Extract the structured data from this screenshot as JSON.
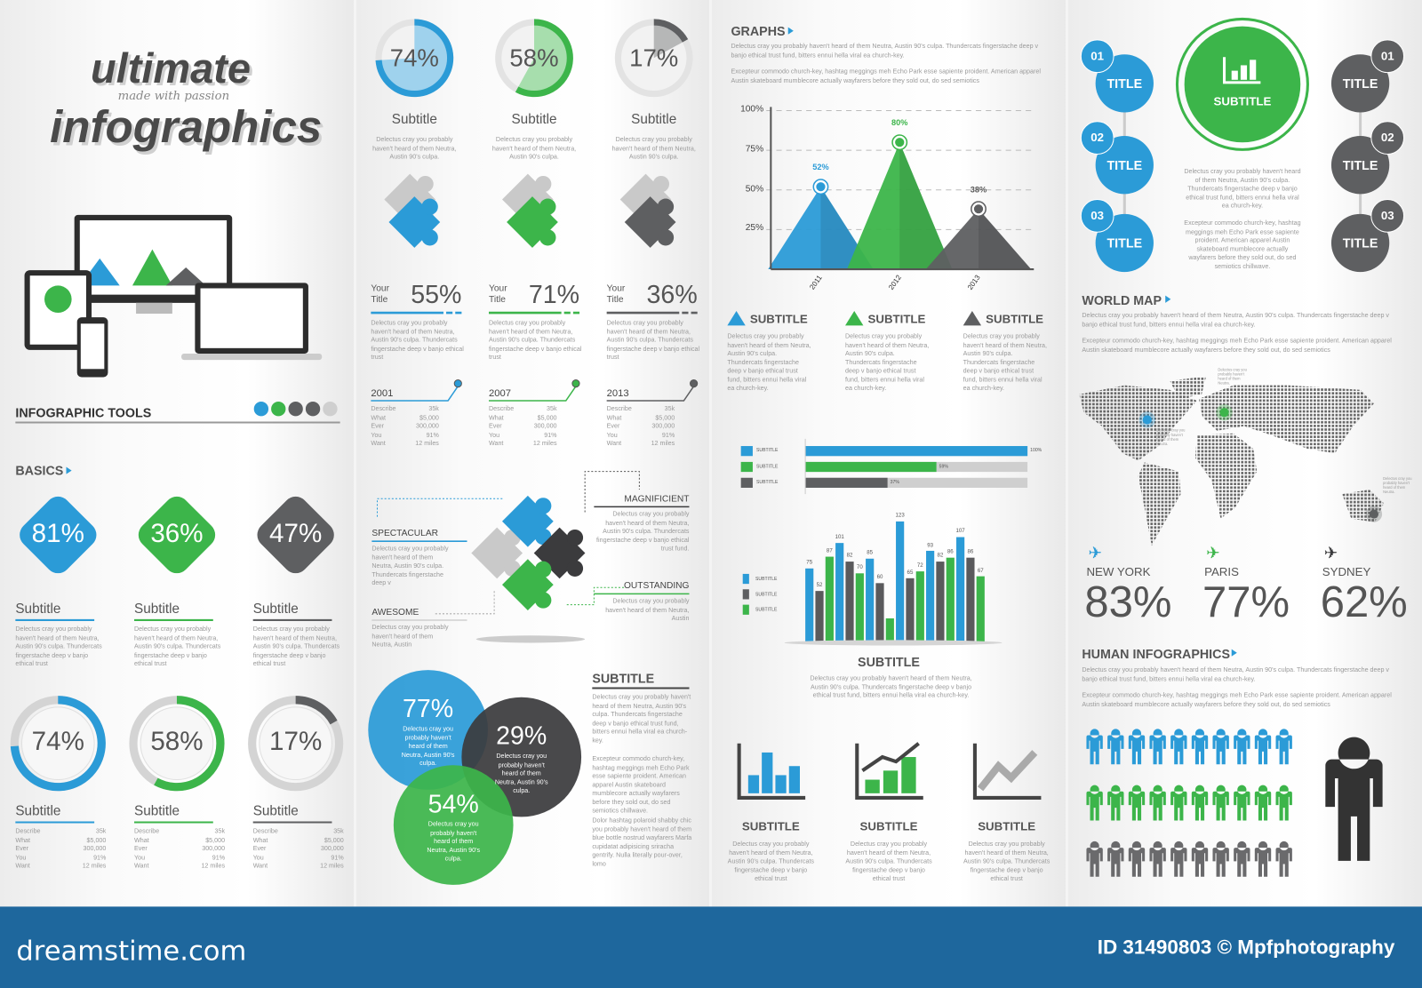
{
  "colors": {
    "blue": "#2b9bd7",
    "green": "#3cb54a",
    "gray": "#5e5f61",
    "dark": "#3b3b3d",
    "light": "#cfcfcf"
  },
  "panel1": {
    "logo": {
      "line1": "ultimate",
      "tagline": "made with passion",
      "line2": "infographics"
    },
    "tools_title": "INFOGRAPHIC TOOLS",
    "tools_dots": [
      "blue",
      "green",
      "gray",
      "gray",
      "light"
    ],
    "basics_title": "BASICS",
    "diamonds": [
      {
        "value": "81%",
        "color": "blue",
        "subtitle": "Subtitle",
        "text": "Delectus cray you probably haven't heard of them Neutra, Austin 90's culpa. Thundercats fingerstache deep v banjo ethical trust"
      },
      {
        "value": "36%",
        "color": "green",
        "subtitle": "Subtitle",
        "text": "Delectus cray you probably haven't heard of them Neutra, Austin 90's culpa. Thundercats fingerstache deep v banjo ethical trust"
      },
      {
        "value": "47%",
        "color": "gray",
        "subtitle": "Subtitle",
        "text": "Delectus cray you probably haven't heard of them Neutra, Austin 90's culpa. Thundercats fingerstache deep v banjo ethical trust"
      }
    ],
    "rings": [
      {
        "value": 74,
        "label": "74%",
        "color": "blue",
        "subtitle": "Subtitle",
        "rows": [
          [
            "Describe",
            "35k"
          ],
          [
            "What",
            "$5,000"
          ],
          [
            "Ever",
            "300,000"
          ],
          [
            "You",
            "91%"
          ],
          [
            "Want",
            "12 miles"
          ]
        ]
      },
      {
        "value": 58,
        "label": "58%",
        "color": "green",
        "subtitle": "Subtitle",
        "rows": [
          [
            "Describe",
            "35k"
          ],
          [
            "What",
            "$5,000"
          ],
          [
            "Ever",
            "300,000"
          ],
          [
            "You",
            "91%"
          ],
          [
            "Want",
            "12 miles"
          ]
        ]
      },
      {
        "value": 17,
        "label": "17%",
        "color": "gray",
        "subtitle": "Subtitle",
        "rows": [
          [
            "Describe",
            "35k"
          ],
          [
            "What",
            "$5,000"
          ],
          [
            "Ever",
            "300,000"
          ],
          [
            "You",
            "91%"
          ],
          [
            "Want",
            "12 miles"
          ]
        ]
      }
    ]
  },
  "panel2": {
    "pies": [
      {
        "value": 74,
        "label": "74%",
        "color": "blue",
        "subtitle": "Subtitle",
        "text": "Delectus cray you probably haven't heard of them Neutra, Austin 90's culpa."
      },
      {
        "value": 58,
        "label": "58%",
        "color": "green",
        "subtitle": "Subtitle",
        "text": "Delectus cray you probably haven't heard of them Neutra, Austin 90's culpa."
      },
      {
        "value": 17,
        "label": "17%",
        "color": "gray",
        "subtitle": "Subtitle",
        "text": "Delectus cray you probably haven't heard of them Neutra, Austin 90's culpa."
      }
    ],
    "puzzles": [
      "blue",
      "green",
      "gray"
    ],
    "stats": [
      {
        "your": "Your",
        "title": "Title",
        "value": "55%",
        "color": "blue",
        "text": "Delectus cray you probably haven't heard of them Neutra, Austin 90's culpa. Thundercats fingerstache deep v banjo ethical trust"
      },
      {
        "your": "Your",
        "title": "Title",
        "value": "71%",
        "color": "green",
        "text": "Delectus cray you probably haven't heard of them Neutra, Austin 90's culpa. Thundercats fingerstache deep v banjo ethical trust"
      },
      {
        "your": "Your",
        "title": "Title",
        "value": "36%",
        "color": "gray",
        "text": "Delectus cray you probably haven't heard of them Neutra, Austin 90's culpa. Thundercats fingerstache deep v banjo ethical trust"
      }
    ],
    "timeline": [
      {
        "year": "2001",
        "color": "blue",
        "rows": [
          [
            "Describe",
            "35k"
          ],
          [
            "What",
            "$5,000"
          ],
          [
            "Ever",
            "300,000"
          ],
          [
            "You",
            "91%"
          ],
          [
            "Want",
            "12 miles"
          ]
        ]
      },
      {
        "year": "2007",
        "color": "green",
        "rows": [
          [
            "Describe",
            "35k"
          ],
          [
            "What",
            "$5,000"
          ],
          [
            "Ever",
            "300,000"
          ],
          [
            "You",
            "91%"
          ],
          [
            "Want",
            "12 miles"
          ]
        ]
      },
      {
        "year": "2013",
        "color": "gray",
        "rows": [
          [
            "Describe",
            "35k"
          ],
          [
            "What",
            "$5,000"
          ],
          [
            "Ever",
            "300,000"
          ],
          [
            "You",
            "91%"
          ],
          [
            "Want",
            "12 miles"
          ]
        ]
      }
    ],
    "puzzle_labels": [
      {
        "title": "SPECTACULAR",
        "color": "blue",
        "text": "Delectus cray you probably haven't heard of them Neutra, Austin 90's culpa. Thundercats fingerstache deep v"
      },
      {
        "title": "AWESOME",
        "color": "light",
        "text": "Delectus cray you probably haven't heard of them Neutra, Austin"
      },
      {
        "title": "MAGNIFICIENT",
        "color": "dark",
        "text": "Delectus cray you probably haven't heard of them Neutra, Austin 90's culpa. Thundercats fingerstache deep v banjo ethical trust fund."
      },
      {
        "title": "OUTSTANDING",
        "color": "green",
        "text": "Delectus cray you probably haven't heard of them Neutra, Austin"
      }
    ],
    "venn": [
      {
        "value": "77%",
        "color": "blue",
        "text": "Delectus cray you probably haven't heard of them Neutra, Austin 90's culpa."
      },
      {
        "value": "29%",
        "color": "dark",
        "text": "Delectus cray you probably haven't heard of them Neutra, Austin 90's culpa."
      },
      {
        "value": "54%",
        "color": "green",
        "text": "Delectus cray you probably haven't heard of them Neutra, Austin 90's culpa."
      }
    ],
    "subtitle_col": {
      "title": "SUBTITLE",
      "paragraphs": [
        "Delectus cray you probably haven't heard of them Neutra, Austin 90's culpa. Thundercats fingerstache deep v banjo ethical trust fund, bitters ennui hella viral ea church-key.",
        "Excepteur commodo church-key, hashtag meggings meh Echo Park esse sapiente proident. American apparel Austin skateboard mumblecore actually wayfarers before they sold out, do sed semiotics chillwave.",
        "Dolor hashtag polaroid shabby chic you probably haven't heard of them blue bottle nostrud wayfarers Marfa cupidatat adipisicing sriracha gentrify. Nulla literally pour-over, lomo"
      ]
    }
  },
  "panel3": {
    "title": "GRAPHS",
    "paragraphs": [
      "Delectus cray you probably haven't heard of them Neutra, Austin 90's culpa. Thundercats fingerstache deep v banjo ethical trust fund, bitters ennui hella viral ea church-key.",
      "Excepteur commodo church-key, hashtag meggings meh Echo Park esse sapiente proident. American apparel Austin skateboard mumblecore actually wayfarers before they sold out, do sed semiotics"
    ],
    "legend": [
      {
        "title": "SUBTITLE",
        "color": "blue",
        "text": "Delectus cray you probably haven't heard of them Neutra, Austin 90's culpa. Thundercats fingerstache deep v banjo ethical trust fund, bitters ennui hella viral ea church-key."
      },
      {
        "title": "SUBTITLE",
        "color": "green",
        "text": "Delectus cray you probably haven't heard of them Neutra, Austin 90's culpa. Thundercats fingerstache deep v banjo ethical trust fund, bitters ennui hella viral ea church-key."
      },
      {
        "title": "SUBTITLE",
        "color": "gray",
        "text": "Delectus cray you probably haven't heard of them Neutra, Austin 90's culpa. Thundercats fingerstache deep v banjo ethical trust fund, bitters ennui hella viral ea church-key."
      }
    ],
    "bars_caption": {
      "title": "SUBTITLE",
      "text": "Delectus cray you probably haven't heard of them Neutra, Austin 90's culpa. Thundercats fingerstache deep v banjo ethical trust fund, bitters ennui hella viral ea church-key."
    },
    "icons": [
      {
        "icon": "bar-chart-icon",
        "color": "blue",
        "title": "SUBTITLE",
        "text": "Delectus cray you probably haven't heard of them Neutra, Austin 90's culpa. Thundercats fingerstache deep v banjo ethical trust"
      },
      {
        "icon": "growth-chart-icon",
        "color": "green",
        "title": "SUBTITLE",
        "text": "Delectus cray you probably haven't heard of them Neutra, Austin 90's culpa. Thundercats fingerstache deep v banjo ethical trust"
      },
      {
        "icon": "line-chart-icon",
        "color": "gray",
        "title": "SUBTITLE",
        "text": "Delectus cray you probably haven't heard of them Neutra, Austin 90's culpa. Thundercats fingerstache deep v banjo ethical trust"
      }
    ]
  },
  "chart_data": [
    {
      "type": "area",
      "categories": [
        "2011",
        "2012",
        "2013"
      ],
      "values": [
        52,
        80,
        38
      ],
      "labels": [
        "52%",
        "80%",
        "38%"
      ],
      "colors": [
        "blue",
        "green",
        "gray"
      ],
      "ylim": [
        0,
        100
      ],
      "yticks": [
        "25%",
        "50%",
        "75%",
        "100%"
      ],
      "grid": true
    },
    {
      "type": "bar",
      "orientation": "horizontal",
      "series": [
        {
          "name": "SUBTITLE",
          "value": 100,
          "label": "100%",
          "color": "blue"
        },
        {
          "name": "SUBTITLE",
          "value": 59,
          "label": "59%",
          "color": "green"
        },
        {
          "name": "SUBTITLE",
          "value": 37,
          "label": "37%",
          "color": "gray"
        }
      ],
      "xlim": [
        0,
        100
      ]
    },
    {
      "type": "bar",
      "legend": "left",
      "series": [
        {
          "name": "SUBTITLE",
          "color": "blue",
          "values": [
            75,
            101,
            85,
            123,
            93,
            107
          ],
          "labels": [
            "75",
            "101",
            "85",
            "123",
            "93",
            "107"
          ]
        },
        {
          "name": "SUBTITLE",
          "color": "gray",
          "values": [
            52,
            82,
            60,
            65,
            82,
            86
          ],
          "labels": [
            "52",
            "82",
            "60",
            "65",
            "82",
            "86"
          ]
        },
        {
          "name": "SUBTITLE",
          "color": "green",
          "values": [
            87,
            70,
            24,
            72,
            86,
            67
          ],
          "labels": [
            "87",
            "70",
            "",
            "72",
            "86",
            "67"
          ]
        }
      ]
    }
  ],
  "panel4": {
    "left_steps": [
      {
        "num": "01",
        "title": "TITLE"
      },
      {
        "num": "02",
        "title": "TITLE"
      },
      {
        "num": "03",
        "title": "TITLE"
      }
    ],
    "right_steps": [
      {
        "num": "01",
        "title": "TITLE"
      },
      {
        "num": "02",
        "title": "TITLE"
      },
      {
        "num": "03",
        "title": "TITLE"
      }
    ],
    "center": {
      "title": "SUBTITLE",
      "paragraphs": [
        "Delectus cray you probably haven't heard of them Neutra, Austin 90's culpa. Thundercats fingerstache deep v banjo ethical trust fund, bitters ennui hella viral ea church-key.",
        "Excepteur commodo church-key, hashtag meggings meh Echo Park esse sapiente proident. American apparel Austin skateboard mumblecore actually wayfarers before they sold out, do sed semiotics chillwave."
      ]
    },
    "world_map": {
      "title": "WORLD MAP",
      "paragraphs": [
        "Delectus cray you probably haven't heard of them Neutra, Austin 90's culpa. Thundercats fingerstache deep v banjo ethical trust fund, bitters ennui hella viral ea church-key.",
        "Excepteur commodo church-key, hashtag meggings meh Echo Park esse sapiente proident. American apparel Austin skateboard mumblecore actually wayfarers before they sold out, do sed semiotics"
      ],
      "callout": "Delectus cray you probably haven't heard of them Neutra."
    },
    "cities": [
      {
        "name": "NEW YORK",
        "value": "83%",
        "color": "blue"
      },
      {
        "name": "PARIS",
        "value": "77%",
        "color": "green"
      },
      {
        "name": "SYDNEY",
        "value": "62%",
        "color": "dark"
      }
    ],
    "human": {
      "title": "HUMAN INFOGRAPHICS",
      "paragraphs": [
        "Delectus cray you probably haven't heard of them Neutra, Austin 90's culpa. Thundercats fingerstache deep v banjo ethical trust fund, bitters ennui hella viral ea church-key.",
        "Excepteur commodo church-key, hashtag meggings meh Echo Park esse sapiente proident. American apparel Austin skateboard mumblecore actually wayfarers before they sold out, do sed semiotics"
      ],
      "rows": [
        "blue",
        "green",
        "gray"
      ],
      "per_row": 10
    }
  },
  "footer": {
    "brand": "dreamstime.com",
    "id": "ID 31490803 © Mpfphotography"
  }
}
